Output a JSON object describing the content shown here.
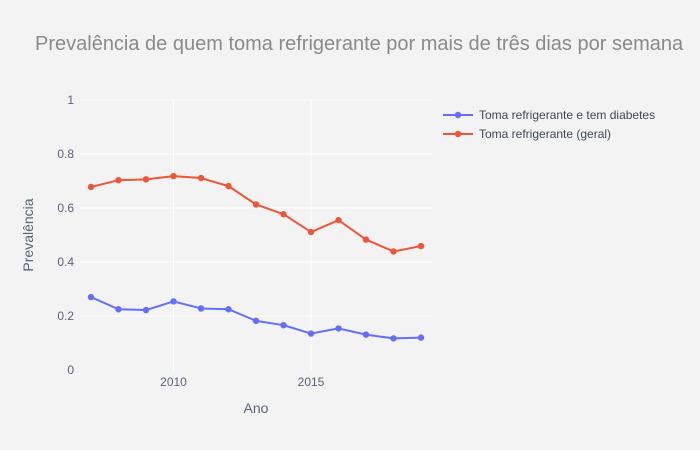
{
  "chart_data": {
    "type": "line",
    "title": "Prevalência de quem toma refrigerante por mais de três dias por semana",
    "xlabel": "Ano",
    "ylabel": "Prevalência",
    "xlim": [
      2006.6,
      2019.4
    ],
    "ylim": [
      0,
      1
    ],
    "x_ticks": [
      "2010",
      "2015"
    ],
    "y_ticks": [
      "0",
      "0.2",
      "0.4",
      "0.6",
      "0.8",
      "1"
    ],
    "grid": true,
    "legend_position": "top-right",
    "x": [
      2007,
      2008,
      2009,
      2010,
      2011,
      2012,
      2013,
      2014,
      2015,
      2016,
      2017,
      2018,
      2019
    ],
    "series": [
      {
        "name": "Toma refrigerante e tem diabetes",
        "color": "#636efa",
        "values": [
          0.27,
          0.225,
          0.222,
          0.254,
          0.228,
          0.225,
          0.182,
          0.166,
          0.135,
          0.154,
          0.131,
          0.117,
          0.12
        ]
      },
      {
        "name": "Toma refrigerante (geral)",
        "color": "#ef553b",
        "values": [
          0.678,
          0.703,
          0.706,
          0.718,
          0.711,
          0.681,
          0.613,
          0.577,
          0.511,
          0.555,
          0.483,
          0.439,
          0.459
        ]
      }
    ]
  },
  "colors": {
    "background": "#f3f3f3",
    "grid": "#ffffff"
  }
}
